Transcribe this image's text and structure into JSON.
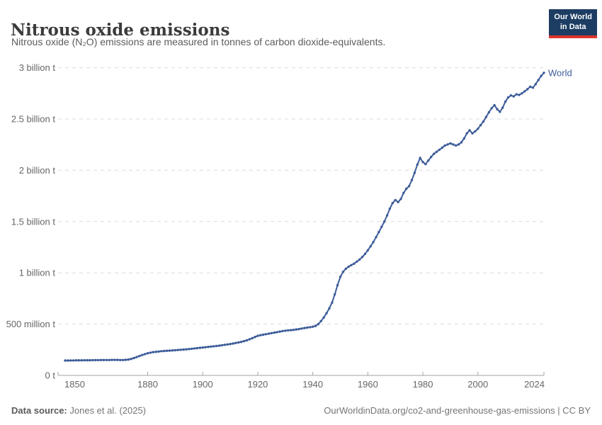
{
  "header": {
    "title": "Nitrous oxide emissions",
    "subtitle": "Nitrous oxide (N₂O) emissions are measured in tonnes of carbon dioxide-equivalents.",
    "logo": {
      "line1": "Our World",
      "line2": "in Data",
      "bg_color": "#1d3d63",
      "accent_color": "#dd352c"
    }
  },
  "footer": {
    "source_label": "Data source:",
    "source_value": "Jones et al. (2025)",
    "credit": "OurWorldinData.org/co2-and-greenhouse-gas-emissions | CC BY"
  },
  "chart_data": {
    "type": "line",
    "title": "Nitrous oxide emissions",
    "values_unit": "billion tonnes of CO2-equivalents",
    "xlim": [
      1850,
      2024
    ],
    "ylim": [
      0,
      3
    ],
    "grid": "horizontal dashed gridlines, light gray",
    "legend": "series label at right end of line",
    "x_tick_years": [
      1850,
      1880,
      1900,
      1920,
      1940,
      1960,
      1980,
      2000,
      2024
    ],
    "y_ticks": [
      {
        "value": 0,
        "label": "0 t"
      },
      {
        "value": 0.5,
        "label": "500 million t"
      },
      {
        "value": 1,
        "label": "1 billion t"
      },
      {
        "value": 1.5,
        "label": "1.5 billion t"
      },
      {
        "value": 2,
        "label": "2 billion t"
      },
      {
        "value": 2.5,
        "label": "2.5 billion t"
      },
      {
        "value": 3,
        "label": "3 billion t"
      }
    ],
    "series": [
      {
        "name": "World",
        "color": "#3d5c99",
        "x": [
          1850,
          1851,
          1852,
          1853,
          1854,
          1855,
          1856,
          1857,
          1858,
          1859,
          1860,
          1861,
          1862,
          1863,
          1864,
          1865,
          1866,
          1867,
          1868,
          1869,
          1870,
          1871,
          1872,
          1873,
          1874,
          1875,
          1876,
          1877,
          1878,
          1879,
          1880,
          1881,
          1882,
          1883,
          1884,
          1885,
          1886,
          1887,
          1888,
          1889,
          1890,
          1891,
          1892,
          1893,
          1894,
          1895,
          1896,
          1897,
          1898,
          1899,
          1900,
          1901,
          1902,
          1903,
          1904,
          1905,
          1906,
          1907,
          1908,
          1909,
          1910,
          1911,
          1912,
          1913,
          1914,
          1915,
          1916,
          1917,
          1918,
          1919,
          1920,
          1921,
          1922,
          1923,
          1924,
          1925,
          1926,
          1927,
          1928,
          1929,
          1930,
          1931,
          1932,
          1933,
          1934,
          1935,
          1936,
          1937,
          1938,
          1939,
          1940,
          1941,
          1942,
          1943,
          1944,
          1945,
          1946,
          1947,
          1948,
          1949,
          1950,
          1951,
          1952,
          1953,
          1954,
          1955,
          1956,
          1957,
          1958,
          1959,
          1960,
          1961,
          1962,
          1963,
          1964,
          1965,
          1966,
          1967,
          1968,
          1969,
          1970,
          1971,
          1972,
          1973,
          1974,
          1975,
          1976,
          1977,
          1978,
          1979,
          1980,
          1981,
          1982,
          1983,
          1984,
          1985,
          1986,
          1987,
          1988,
          1989,
          1990,
          1991,
          1992,
          1993,
          1994,
          1995,
          1996,
          1997,
          1998,
          1999,
          2000,
          2001,
          2002,
          2003,
          2004,
          2005,
          2006,
          2007,
          2008,
          2009,
          2010,
          2011,
          2012,
          2013,
          2014,
          2015,
          2016,
          2017,
          2018,
          2019,
          2020,
          2021,
          2022,
          2023,
          2024
        ],
        "values": [
          0.145,
          0.145,
          0.146,
          0.146,
          0.147,
          0.147,
          0.147,
          0.148,
          0.148,
          0.148,
          0.149,
          0.149,
          0.149,
          0.15,
          0.15,
          0.15,
          0.15,
          0.151,
          0.151,
          0.151,
          0.15,
          0.15,
          0.152,
          0.155,
          0.161,
          0.169,
          0.179,
          0.189,
          0.199,
          0.208,
          0.216,
          0.222,
          0.227,
          0.23,
          0.233,
          0.236,
          0.238,
          0.24,
          0.242,
          0.244,
          0.246,
          0.248,
          0.25,
          0.252,
          0.254,
          0.257,
          0.26,
          0.263,
          0.266,
          0.269,
          0.272,
          0.275,
          0.278,
          0.281,
          0.284,
          0.287,
          0.29,
          0.294,
          0.298,
          0.302,
          0.306,
          0.311,
          0.316,
          0.321,
          0.327,
          0.334,
          0.342,
          0.352,
          0.363,
          0.375,
          0.386,
          0.392,
          0.397,
          0.402,
          0.407,
          0.412,
          0.417,
          0.422,
          0.427,
          0.432,
          0.436,
          0.439,
          0.441,
          0.444,
          0.448,
          0.452,
          0.457,
          0.462,
          0.466,
          0.47,
          0.475,
          0.482,
          0.5,
          0.53,
          0.565,
          0.607,
          0.655,
          0.71,
          0.79,
          0.88,
          0.96,
          1.01,
          1.04,
          1.06,
          1.075,
          1.09,
          1.11,
          1.13,
          1.155,
          1.185,
          1.22,
          1.258,
          1.3,
          1.348,
          1.398,
          1.448,
          1.5,
          1.56,
          1.625,
          1.68,
          1.71,
          1.69,
          1.72,
          1.78,
          1.82,
          1.845,
          1.905,
          1.975,
          2.055,
          2.12,
          2.08,
          2.06,
          2.095,
          2.13,
          2.16,
          2.18,
          2.2,
          2.22,
          2.24,
          2.252,
          2.262,
          2.252,
          2.242,
          2.252,
          2.272,
          2.31,
          2.36,
          2.39,
          2.36,
          2.38,
          2.405,
          2.44,
          2.475,
          2.52,
          2.565,
          2.605,
          2.635,
          2.595,
          2.57,
          2.61,
          2.67,
          2.71,
          2.73,
          2.72,
          2.74,
          2.735,
          2.75,
          2.77,
          2.79,
          2.815,
          2.805,
          2.84,
          2.88,
          2.92,
          2.95
        ]
      }
    ],
    "colors": {
      "gridline": "#dcdcdc",
      "axis": "#a3a3a3",
      "tick_label": "#666666"
    }
  }
}
